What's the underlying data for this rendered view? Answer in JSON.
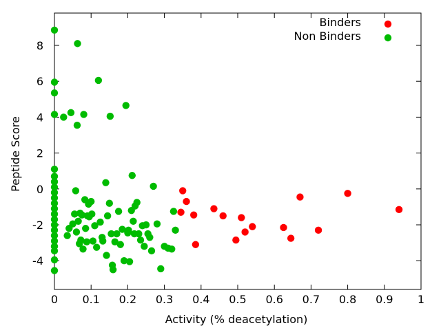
{
  "chart_data": {
    "type": "scatter",
    "xlabel": "Activity (% deacetylation)",
    "ylabel": "Peptide Score",
    "xlim": [
      0,
      1
    ],
    "ylim": [
      -5.6,
      9.8
    ],
    "xticks": [
      "0",
      "0.1",
      "0.2",
      "0.3",
      "0.4",
      "0.5",
      "0.6",
      "0.7",
      "0.8",
      "0.9",
      "1"
    ],
    "yticks": [
      "-4",
      "-2",
      "0",
      "2",
      "4",
      "6",
      "8"
    ],
    "grid": false,
    "legend_position": "top-right",
    "series": [
      {
        "name": "Binders",
        "color": "#ff0000",
        "points": [
          [
            0.35,
            -0.1
          ],
          [
            0.36,
            -0.7
          ],
          [
            0.345,
            -1.3
          ],
          [
            0.38,
            -1.45
          ],
          [
            0.385,
            -3.1
          ],
          [
            0.435,
            -1.1
          ],
          [
            0.46,
            -1.5
          ],
          [
            0.495,
            -2.85
          ],
          [
            0.51,
            -1.6
          ],
          [
            0.52,
            -2.4
          ],
          [
            0.54,
            -2.1
          ],
          [
            0.625,
            -2.15
          ],
          [
            0.645,
            -2.75
          ],
          [
            0.67,
            -0.45
          ],
          [
            0.72,
            -2.3
          ],
          [
            0.8,
            -0.25
          ],
          [
            0.94,
            -1.15
          ]
        ]
      },
      {
        "name": "Non Binders",
        "color": "#00bb00",
        "points": [
          [
            0,
            8.85
          ],
          [
            0,
            5.95
          ],
          [
            0,
            5.35
          ],
          [
            0,
            4.15
          ],
          [
            0,
            1.1
          ],
          [
            0,
            0.7
          ],
          [
            0,
            0.4
          ],
          [
            0,
            0.1
          ],
          [
            0,
            -0.2
          ],
          [
            0,
            -0.5
          ],
          [
            0,
            -0.8
          ],
          [
            0,
            -1.1
          ],
          [
            0,
            -1.4
          ],
          [
            0,
            -1.7
          ],
          [
            0,
            -2.0
          ],
          [
            0,
            -2.3
          ],
          [
            0,
            -2.6
          ],
          [
            0,
            -2.9
          ],
          [
            0,
            -3.2
          ],
          [
            0,
            -3.45
          ],
          [
            0,
            -3.95
          ],
          [
            0,
            -4.55
          ],
          [
            0.025,
            4.0
          ],
          [
            0.035,
            -2.6
          ],
          [
            0.04,
            -2.2
          ],
          [
            0.045,
            4.25
          ],
          [
            0.05,
            -1.95
          ],
          [
            0.055,
            -1.4
          ],
          [
            0.058,
            -0.1
          ],
          [
            0.06,
            -2.4
          ],
          [
            0.062,
            3.55
          ],
          [
            0.063,
            8.1
          ],
          [
            0.065,
            -1.8
          ],
          [
            0.068,
            -3.05
          ],
          [
            0.07,
            -1.35
          ],
          [
            0.072,
            -2.85
          ],
          [
            0.075,
            -1.45
          ],
          [
            0.078,
            -3.35
          ],
          [
            0.08,
            4.15
          ],
          [
            0.083,
            -0.6
          ],
          [
            0.085,
            -2.2
          ],
          [
            0.088,
            -2.95
          ],
          [
            0.09,
            -1.5
          ],
          [
            0.093,
            -0.85
          ],
          [
            0.095,
            -1.55
          ],
          [
            0.1,
            -0.7
          ],
          [
            0.102,
            -1.4
          ],
          [
            0.105,
            -2.9
          ],
          [
            0.11,
            -2.05
          ],
          [
            0.115,
            -3.25
          ],
          [
            0.12,
            6.05
          ],
          [
            0.125,
            -1.85
          ],
          [
            0.13,
            -2.7
          ],
          [
            0.132,
            -2.9
          ],
          [
            0.14,
            0.35
          ],
          [
            0.142,
            -3.7
          ],
          [
            0.145,
            -1.5
          ],
          [
            0.15,
            -0.8
          ],
          [
            0.152,
            4.05
          ],
          [
            0.155,
            -2.5
          ],
          [
            0.158,
            -4.25
          ],
          [
            0.16,
            -4.5
          ],
          [
            0.165,
            -2.95
          ],
          [
            0.17,
            -2.5
          ],
          [
            0.175,
            -1.25
          ],
          [
            0.18,
            -3.1
          ],
          [
            0.185,
            -2.25
          ],
          [
            0.19,
            -4.0
          ],
          [
            0.195,
            4.65
          ],
          [
            0.2,
            -2.45
          ],
          [
            0.202,
            -2.3
          ],
          [
            0.205,
            -4.05
          ],
          [
            0.21,
            -1.2
          ],
          [
            0.212,
            0.75
          ],
          [
            0.215,
            -1.8
          ],
          [
            0.218,
            -2.5
          ],
          [
            0.22,
            -0.95
          ],
          [
            0.225,
            -0.75
          ],
          [
            0.23,
            -2.5
          ],
          [
            0.235,
            -2.85
          ],
          [
            0.24,
            -2.05
          ],
          [
            0.245,
            -3.2
          ],
          [
            0.25,
            -2.0
          ],
          [
            0.255,
            -2.5
          ],
          [
            0.26,
            -2.7
          ],
          [
            0.265,
            -3.45
          ],
          [
            0.27,
            0.15
          ],
          [
            0.28,
            -1.95
          ],
          [
            0.29,
            -4.45
          ],
          [
            0.3,
            -3.2
          ],
          [
            0.31,
            -3.3
          ],
          [
            0.32,
            -3.35
          ],
          [
            0.33,
            -2.3
          ],
          [
            0.325,
            -1.25
          ]
        ]
      }
    ]
  }
}
